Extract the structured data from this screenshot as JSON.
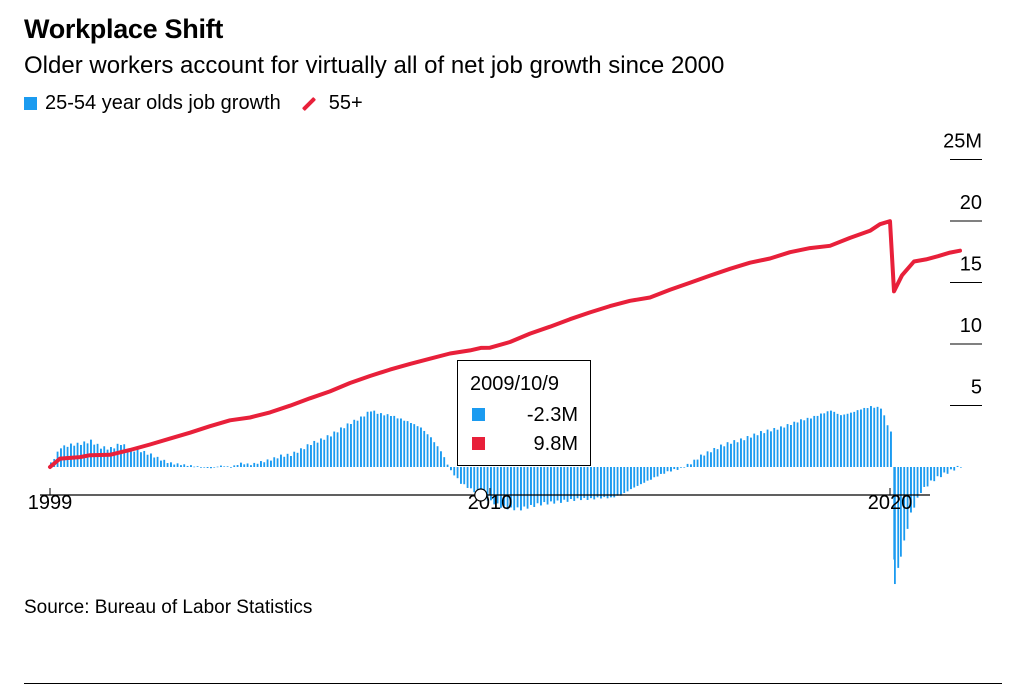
{
  "header": {
    "title": "Workplace Shift",
    "subtitle": "Older workers account for virtually all of net job growth since 2000"
  },
  "legend": {
    "bar_label": "25-54 year olds job growth",
    "line_label": "55+"
  },
  "colors": {
    "bar": "#1b9bf0",
    "line": "#e8203a",
    "axis": "#000000"
  },
  "tooltip": {
    "date": "2009/10/9",
    "bar_value": "-2.3M",
    "line_value": "9.8M"
  },
  "footer": {
    "source": "Source: Bureau of Labor Statistics"
  },
  "chart_data": {
    "type": "bar+line",
    "title": "Workplace Shift",
    "subtitle": "Older workers account for virtually all of net job growth since 2000",
    "x_range": [
      1999.0,
      2021.0
    ],
    "x_ticks": [
      {
        "value": 1999,
        "label": "1999"
      },
      {
        "value": 2010,
        "label": "2010"
      },
      {
        "value": 2020,
        "label": "2020"
      }
    ],
    "y_range": [
      -10,
      25
    ],
    "y_ticks": [
      {
        "value": 25,
        "label": "25M"
      },
      {
        "value": 20,
        "label": "20"
      },
      {
        "value": 15,
        "label": "15"
      },
      {
        "value": 10,
        "label": "10"
      },
      {
        "value": 5,
        "label": "5"
      }
    ],
    "grid": false,
    "legend_position": "top-left",
    "series": [
      {
        "name": "25-54 year olds job growth",
        "type": "bar",
        "points": [
          [
            1999.0,
            0.3
          ],
          [
            1999.25,
            1.6
          ],
          [
            1999.5,
            1.8
          ],
          [
            1999.75,
            1.9
          ],
          [
            2000.0,
            2.1
          ],
          [
            2000.25,
            1.6
          ],
          [
            2000.5,
            1.5
          ],
          [
            2000.75,
            1.9
          ],
          [
            2001.0,
            1.4
          ],
          [
            2001.25,
            1.3
          ],
          [
            2001.5,
            1.0
          ],
          [
            2001.75,
            0.6
          ],
          [
            2002.0,
            0.3
          ],
          [
            2002.25,
            0.2
          ],
          [
            2002.5,
            0.1
          ],
          [
            2002.75,
            0.0
          ],
          [
            2003.0,
            -0.1
          ],
          [
            2003.25,
            0.1
          ],
          [
            2003.5,
            0.0
          ],
          [
            2003.75,
            0.3
          ],
          [
            2004.0,
            0.2
          ],
          [
            2004.25,
            0.4
          ],
          [
            2004.5,
            0.6
          ],
          [
            2004.75,
            0.9
          ],
          [
            2005.0,
            1.0
          ],
          [
            2005.25,
            1.4
          ],
          [
            2005.5,
            1.9
          ],
          [
            2005.75,
            2.2
          ],
          [
            2006.0,
            2.6
          ],
          [
            2006.25,
            3.1
          ],
          [
            2006.5,
            3.6
          ],
          [
            2006.75,
            4.0
          ],
          [
            2007.0,
            4.6
          ],
          [
            2007.25,
            4.3
          ],
          [
            2007.5,
            4.2
          ],
          [
            2007.75,
            3.9
          ],
          [
            2008.0,
            3.6
          ],
          [
            2008.25,
            3.2
          ],
          [
            2008.5,
            2.4
          ],
          [
            2008.75,
            1.3
          ],
          [
            2009.0,
            -0.3
          ],
          [
            2009.25,
            -1.3
          ],
          [
            2009.5,
            -1.8
          ],
          [
            2009.75,
            -2.3
          ],
          [
            2010.0,
            -2.8
          ],
          [
            2010.25,
            -3.2
          ],
          [
            2010.5,
            -3.4
          ],
          [
            2010.75,
            -3.4
          ],
          [
            2011.0,
            -3.2
          ],
          [
            2011.25,
            -3.0
          ],
          [
            2011.5,
            -2.9
          ],
          [
            2011.75,
            -2.8
          ],
          [
            2012.0,
            -2.7
          ],
          [
            2012.25,
            -2.6
          ],
          [
            2012.5,
            -2.6
          ],
          [
            2012.75,
            -2.5
          ],
          [
            2013.0,
            -2.5
          ],
          [
            2013.25,
            -2.3
          ],
          [
            2013.5,
            -1.8
          ],
          [
            2013.75,
            -1.4
          ],
          [
            2014.0,
            -1.0
          ],
          [
            2014.25,
            -0.6
          ],
          [
            2014.5,
            -0.3
          ],
          [
            2014.75,
            -0.1
          ],
          [
            2015.0,
            0.3
          ],
          [
            2015.25,
            0.9
          ],
          [
            2015.5,
            1.3
          ],
          [
            2015.75,
            1.7
          ],
          [
            2016.0,
            2.0
          ],
          [
            2016.25,
            2.2
          ],
          [
            2016.5,
            2.5
          ],
          [
            2016.75,
            2.8
          ],
          [
            2017.0,
            3.0
          ],
          [
            2017.25,
            3.2
          ],
          [
            2017.5,
            3.5
          ],
          [
            2017.75,
            3.8
          ],
          [
            2018.0,
            4.0
          ],
          [
            2018.25,
            4.3
          ],
          [
            2018.5,
            4.6
          ],
          [
            2018.75,
            4.2
          ],
          [
            2019.0,
            4.4
          ],
          [
            2019.25,
            4.7
          ],
          [
            2019.5,
            4.9
          ],
          [
            2019.75,
            4.8
          ],
          [
            2020.0,
            2.8
          ],
          [
            2020.1,
            -9.5
          ],
          [
            2020.25,
            -7.2
          ],
          [
            2020.5,
            -3.8
          ],
          [
            2020.75,
            -2.0
          ],
          [
            2021.0,
            -1.2
          ],
          [
            2021.25,
            -0.7
          ],
          [
            2021.5,
            -0.3
          ],
          [
            2021.75,
            0.1
          ]
        ]
      },
      {
        "name": "55+",
        "type": "line",
        "points": [
          [
            1999.0,
            0.0
          ],
          [
            1999.25,
            0.6
          ],
          [
            1999.5,
            0.7
          ],
          [
            1999.75,
            0.8
          ],
          [
            2000.0,
            1.0
          ],
          [
            2000.5,
            1.1
          ],
          [
            2001.0,
            1.5
          ],
          [
            2001.5,
            1.9
          ],
          [
            2002.0,
            2.3
          ],
          [
            2002.5,
            2.7
          ],
          [
            2003.0,
            3.2
          ],
          [
            2003.5,
            3.7
          ],
          [
            2004.0,
            4.0
          ],
          [
            2004.5,
            4.5
          ],
          [
            2005.0,
            5.1
          ],
          [
            2005.5,
            5.7
          ],
          [
            2006.0,
            6.2
          ],
          [
            2006.5,
            6.8
          ],
          [
            2007.0,
            7.3
          ],
          [
            2007.5,
            7.8
          ],
          [
            2008.0,
            8.3
          ],
          [
            2008.5,
            8.8
          ],
          [
            2009.0,
            9.3
          ],
          [
            2009.5,
            9.6
          ],
          [
            2009.77,
            9.8
          ],
          [
            2010.0,
            9.8
          ],
          [
            2010.5,
            10.2
          ],
          [
            2011.0,
            10.8
          ],
          [
            2011.5,
            11.3
          ],
          [
            2012.0,
            11.9
          ],
          [
            2012.5,
            12.5
          ],
          [
            2013.0,
            13.1
          ],
          [
            2013.5,
            13.6
          ],
          [
            2014.0,
            13.9
          ],
          [
            2014.5,
            14.5
          ],
          [
            2015.0,
            15.0
          ],
          [
            2015.5,
            15.5
          ],
          [
            2016.0,
            16.0
          ],
          [
            2016.5,
            16.5
          ],
          [
            2017.0,
            16.9
          ],
          [
            2017.5,
            17.5
          ],
          [
            2018.0,
            17.9
          ],
          [
            2018.5,
            18.1
          ],
          [
            2019.0,
            18.7
          ],
          [
            2019.5,
            19.2
          ],
          [
            2019.75,
            19.7
          ],
          [
            2020.0,
            19.9
          ],
          [
            2020.1,
            14.4
          ],
          [
            2020.3,
            15.6
          ],
          [
            2020.6,
            16.8
          ],
          [
            2020.9,
            17.0
          ],
          [
            2021.2,
            17.2
          ],
          [
            2021.5,
            17.4
          ],
          [
            2021.75,
            17.6
          ]
        ]
      }
    ],
    "annotations": [
      {
        "x": 2009.77,
        "date": "2009/10/9",
        "values": {
          "25-54 year olds job growth": -2.3,
          "55+": 9.8
        }
      }
    ]
  }
}
